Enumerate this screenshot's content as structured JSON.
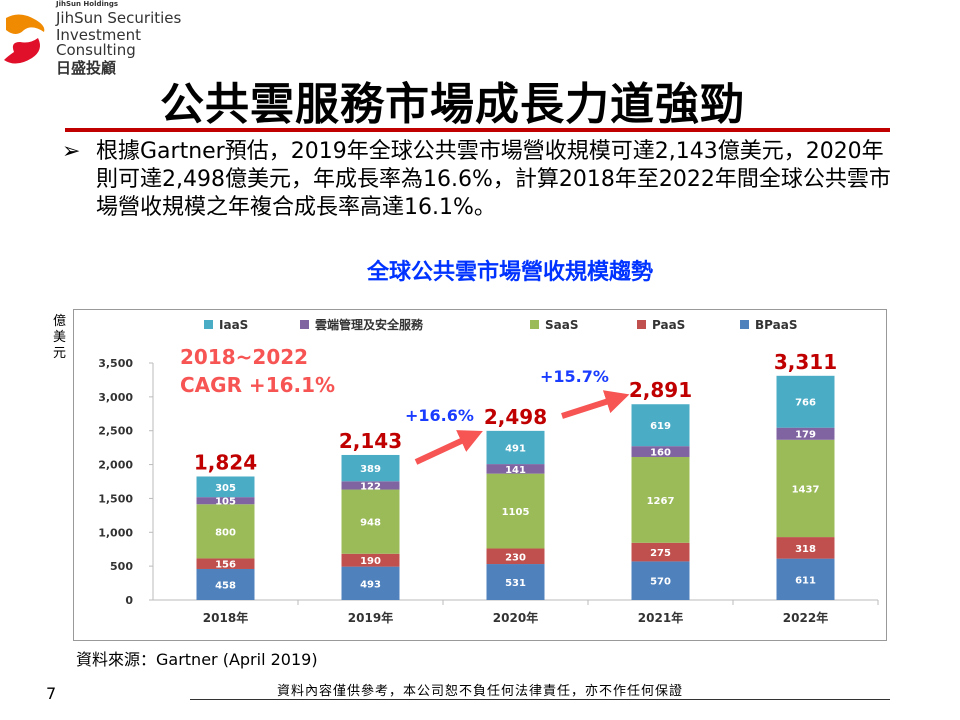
{
  "logo": {
    "holdings": "JihSun Holdings",
    "line1": "JihSun Securities",
    "line2": "Investment Consulting",
    "chinese": "日盛投顧"
  },
  "title": "公共雲服務市場成長力道強勁",
  "bullet": "根據Gartner預估，2019年全球公共雲市場營收規模可達2,143億美元，2020年則可達2,498億美元，年成長率為16.6%，計算2018年至2022年間全球公共雲市場營收規模之年複合成長率高達16.1%。",
  "colors": {
    "IaaS": "#4bacc6",
    "security": "#8064a2",
    "SaaS": "#9bbb59",
    "PaaS": "#c0504d",
    "BPaaS": "#4f81bd",
    "accent": "#c00000",
    "arrow": "#f75454"
  },
  "chart_data": {
    "type": "bar",
    "stacked": true,
    "title": "全球公共雲市場營收規模趨勢",
    "ylabel": "億美元",
    "ylim": [
      0,
      3500
    ],
    "yticks": [
      "0",
      "500",
      "1,000",
      "1,500",
      "2,000",
      "2,500",
      "3,000",
      "3,500"
    ],
    "categories": [
      "2018年",
      "2019年",
      "2020年",
      "2021年",
      "2022年"
    ],
    "series": [
      {
        "name": "BPaaS",
        "values": [
          458,
          493,
          531,
          570,
          611
        ]
      },
      {
        "name": "PaaS",
        "values": [
          156,
          190,
          230,
          275,
          318
        ]
      },
      {
        "name": "SaaS",
        "values": [
          800,
          948,
          1105,
          1267,
          1437
        ]
      },
      {
        "name": "雲端管理及安全服務",
        "values": [
          105,
          122,
          141,
          160,
          179
        ]
      },
      {
        "name": "IaaS",
        "values": [
          305,
          389,
          491,
          619,
          766
        ]
      }
    ],
    "legend_order": [
      "IaaS",
      "雲端管理及安全服務",
      "SaaS",
      "PaaS",
      "BPaaS"
    ],
    "totals": [
      "1,824",
      "2,143",
      "2,498",
      "2,891",
      "3,311"
    ],
    "cagr_line1": "2018~2022",
    "cagr_line2": "CAGR +16.1%",
    "growth_labels": [
      "+16.6%",
      "+15.7%"
    ]
  },
  "source": "資料來源：Gartner (April 2019)",
  "page_number": "7",
  "footer": "資料內容僅供參考，本公司恕不負任何法律責任，亦不作任何保證"
}
